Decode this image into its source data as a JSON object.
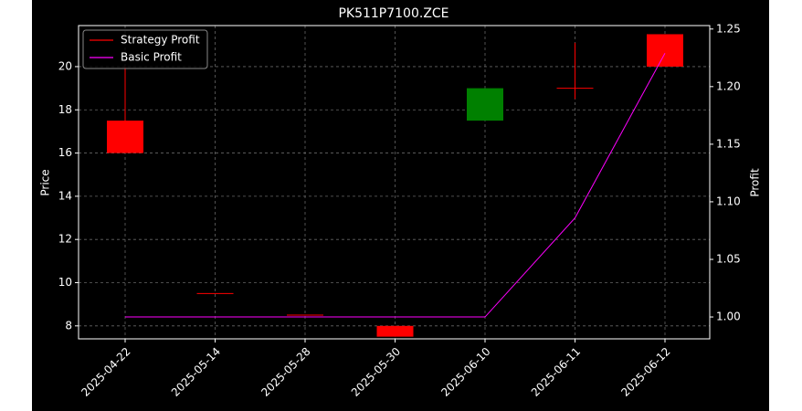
{
  "chart_data": {
    "type": "candlestick",
    "title": "PK511P7100.ZCE",
    "categories": [
      "2025-04-22",
      "2025-05-14",
      "2025-05-28",
      "2025-05-30",
      "2025-06-10",
      "2025-06-11",
      "2025-06-12"
    ],
    "open": [
      16,
      9.5,
      8.5,
      7.5,
      19,
      19,
      20
    ],
    "high": [
      20,
      9.5,
      8.5,
      8,
      19,
      21.1,
      21.5
    ],
    "low": [
      16,
      9.5,
      8.5,
      7.5,
      17.5,
      18.5,
      20
    ],
    "close": [
      17.5,
      9.5,
      8.5,
      8,
      17.5,
      19,
      21.5
    ],
    "up_color": "#ff0000",
    "down_color": "#008000",
    "ylabel": "Price",
    "y2label": "Profit",
    "ylim": [
      7.4,
      21.9
    ],
    "yticks": [
      8,
      10,
      12,
      14,
      16,
      18,
      20
    ],
    "y2lim": [
      0.981,
      1.253
    ],
    "y2ticks": [
      {
        "value": 1.0,
        "label": "1.00"
      },
      {
        "value": 1.05,
        "label": "1.05"
      },
      {
        "value": 1.1,
        "label": "1.10"
      },
      {
        "value": 1.15,
        "label": "1.15"
      },
      {
        "value": 1.2,
        "label": "1.20"
      },
      {
        "value": 1.25,
        "label": "1.25"
      }
    ],
    "legend": [
      {
        "name": "Strategy Profit",
        "color": "#ff0000"
      },
      {
        "name": "Basic Profit",
        "color": "#ff00ff"
      }
    ],
    "series": [
      {
        "name": "Basic Profit",
        "color": "#ff00ff",
        "axis": "y2",
        "values": [
          1.0,
          1.0,
          1.0,
          1.0,
          1.0,
          1.086,
          1.229
        ]
      }
    ],
    "grid": true,
    "legend_position": "upper left"
  }
}
